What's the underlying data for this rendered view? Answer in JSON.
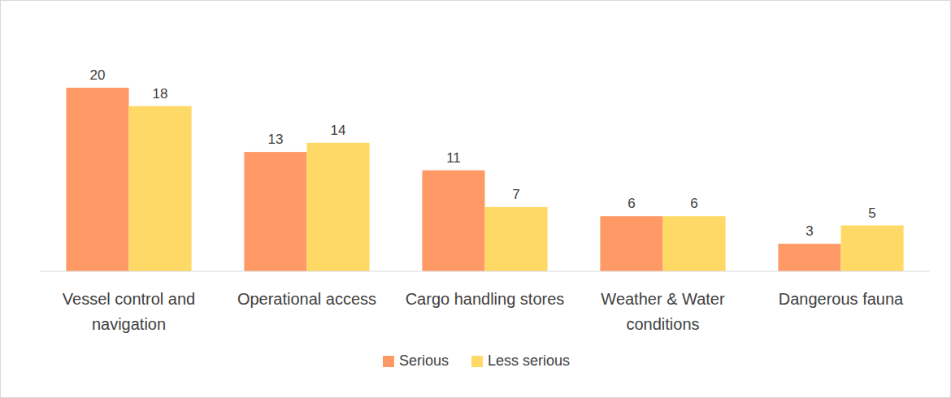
{
  "chart_data": {
    "type": "bar",
    "categories": [
      "Vessel control and navigation",
      "Operational access",
      "Cargo handling stores",
      "Weather & Water conditions",
      "Dangerous fauna"
    ],
    "series": [
      {
        "name": "Serious",
        "color": "#ff9966",
        "values": [
          20,
          13,
          11,
          6,
          3
        ]
      },
      {
        "name": "Less serious",
        "color": "#ffd966",
        "values": [
          18,
          14,
          7,
          6,
          5
        ]
      }
    ],
    "ylim": [
      0,
      22
    ],
    "grid": false,
    "data_labels": true,
    "tick_labels": "x",
    "legend": "bottom"
  }
}
